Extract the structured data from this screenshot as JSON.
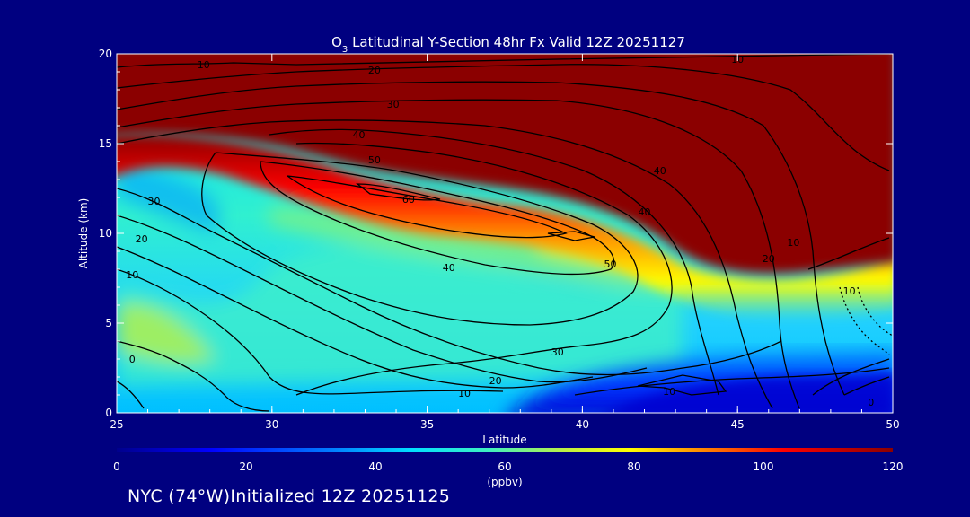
{
  "chart_data": {
    "type": "heatmap",
    "title_prefix": "O",
    "title_subscript": "3",
    "title_rest": " Latitudinal Y-Section 48hr  Fx Valid 12Z 20251127",
    "xlabel": "Latitude",
    "ylabel": "Altitude (km)",
    "xlim": [
      25,
      50
    ],
    "ylim": [
      0,
      20
    ],
    "x_ticks": [
      25,
      30,
      35,
      40,
      45,
      50
    ],
    "y_ticks": [
      0,
      5,
      10,
      15,
      20
    ],
    "colorbar": {
      "min": 0,
      "max": 120,
      "ticks": [
        0,
        20,
        40,
        60,
        80,
        100,
        120
      ],
      "unit_label": "(ppbv)",
      "colors": [
        "#00008c",
        "#0000ff",
        "#0080ff",
        "#00e0ff",
        "#40f0c0",
        "#c0f040",
        "#ffff00",
        "#ff8000",
        "#ff0000",
        "#8b0000"
      ]
    },
    "contour_labels": [
      {
        "value": "10",
        "x": 27.8,
        "y": 19.4
      },
      {
        "value": "20",
        "x": 33.3,
        "y": 19.1
      },
      {
        "value": "30",
        "x": 33.9,
        "y": 17.2
      },
      {
        "value": "40",
        "x": 32.8,
        "y": 15.5
      },
      {
        "value": "50",
        "x": 33.3,
        "y": 14.1
      },
      {
        "value": "60",
        "x": 34.4,
        "y": 11.9
      },
      {
        "value": "50",
        "x": 40.9,
        "y": 8.3
      },
      {
        "value": "40",
        "x": 35.7,
        "y": 8.1
      },
      {
        "value": "40",
        "x": 42.0,
        "y": 11.2
      },
      {
        "value": "40",
        "x": 42.5,
        "y": 13.5
      },
      {
        "value": "30",
        "x": 26.2,
        "y": 11.8
      },
      {
        "value": "20",
        "x": 25.8,
        "y": 9.7
      },
      {
        "value": "10",
        "x": 25.5,
        "y": 7.7
      },
      {
        "value": "0",
        "x": 25.5,
        "y": 3.0
      },
      {
        "value": "30",
        "x": 39.2,
        "y": 3.4
      },
      {
        "value": "20",
        "x": 37.2,
        "y": 1.8
      },
      {
        "value": "10",
        "x": 36.2,
        "y": 1.1
      },
      {
        "value": "10",
        "x": 46.8,
        "y": 9.5
      },
      {
        "value": "20",
        "x": 46.0,
        "y": 8.6
      },
      {
        "value": "10",
        "x": 48.6,
        "y": 6.8
      },
      {
        "value": "0",
        "x": 49.3,
        "y": 0.6
      },
      {
        "value": "10",
        "x": 42.8,
        "y": 1.2
      },
      {
        "value": "10",
        "x": 45.0,
        "y": 19.7
      }
    ]
  },
  "footer": {
    "location_text": "NYC (74°W)Initialized 12Z 20251125"
  }
}
